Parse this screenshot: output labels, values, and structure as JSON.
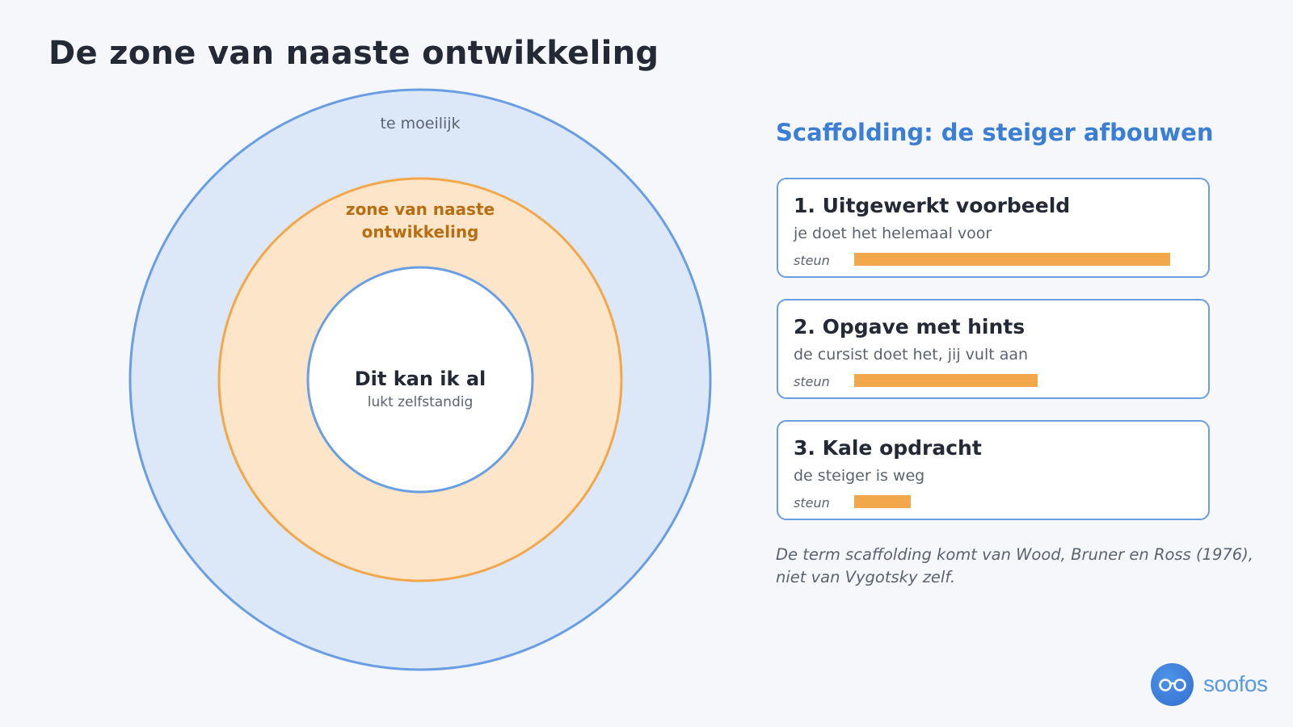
{
  "title": "De zone van naaste ontwikkeling",
  "diagram": {
    "outer_label": "te moeilijk",
    "middle_label_line1": "zone van naaste",
    "middle_label_line2": "ontwikkeling",
    "inner_title": "Dit kan ik al",
    "inner_subtitle": "lukt zelfstandig",
    "colors": {
      "outer_fill": "#dce8f8",
      "blue_stroke": "#6a9ee3",
      "middle_fill": "#fce5c8",
      "orange_stroke": "#f2a84a",
      "middle_text": "#b86d12",
      "inner_fill": "#ffffff"
    }
  },
  "panel": {
    "title": "Scaffolding: de steiger afbouwen",
    "bar_color": "#f2a84a",
    "steps": [
      {
        "title": "1. Uitgewerkt voorbeeld",
        "desc": "je doet het helemaal voor",
        "steun_label": "steun",
        "support": 1.0
      },
      {
        "title": "2. Opgave met hints",
        "desc": "de cursist doet het, jij vult aan",
        "steun_label": "steun",
        "support": 0.58
      },
      {
        "title": "3. Kale opdracht",
        "desc": "de steiger is weg",
        "steun_label": "steun",
        "support": 0.18
      }
    ]
  },
  "note": "De term scaffolding komt van Wood, Bruner en Ross (1976), niet van Vygotsky zelf.",
  "logo": {
    "text": "soofos",
    "icon": "glasses-icon"
  }
}
